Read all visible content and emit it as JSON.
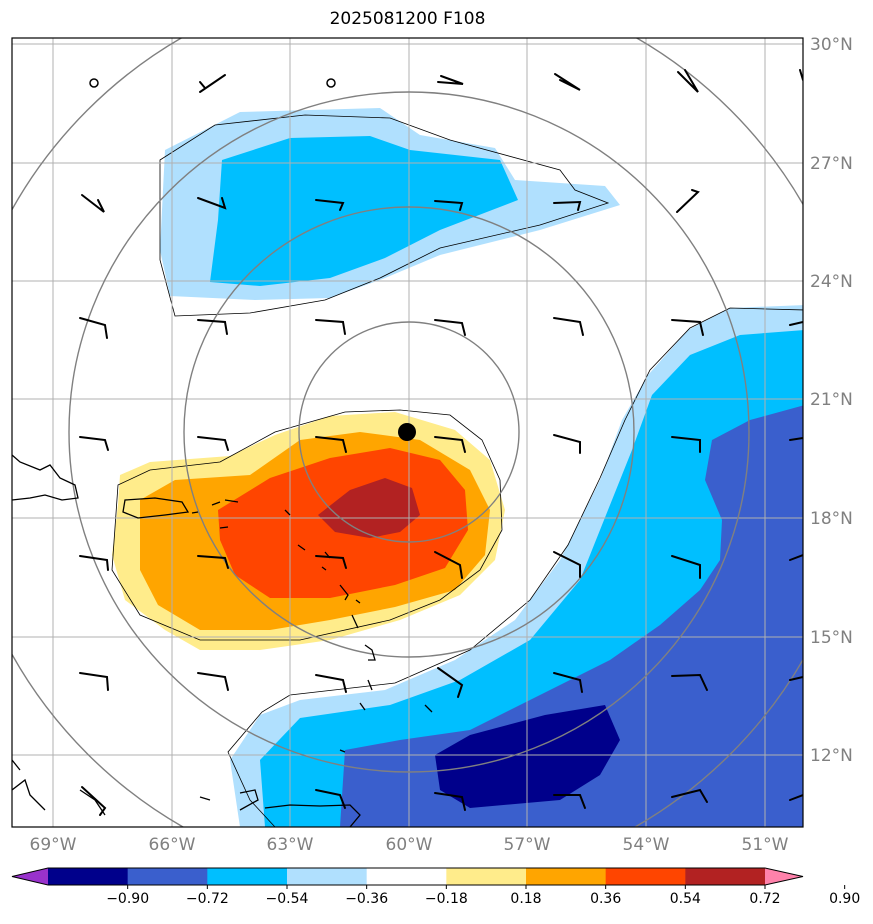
{
  "title": "2025081200 F108",
  "map": {
    "lat_labels": [
      "30°N",
      "27°N",
      "24°N",
      "21°N",
      "18°N",
      "15°N",
      "12°N"
    ],
    "lon_labels": [
      "69°W",
      "66°W",
      "63°W",
      "60°W",
      "57°W",
      "54°W",
      "51°W"
    ],
    "center_marker": {
      "lon": "60°W",
      "lat": "20.5°N",
      "color": "#000000"
    }
  },
  "colorbar": {
    "tick_labels": [
      "−0.90",
      "−0.72",
      "−0.54",
      "−0.36",
      "−0.18",
      "0.18",
      "0.36",
      "0.54",
      "0.72",
      "0.90"
    ],
    "colors": [
      "#9932cc",
      "#00008b",
      "#3a5fcd",
      "#00bfff",
      "#b0e0fe",
      "#ffffff",
      "#ffec8b",
      "#ffa500",
      "#ff4500",
      "#b22222",
      "#ff82ab"
    ]
  }
}
